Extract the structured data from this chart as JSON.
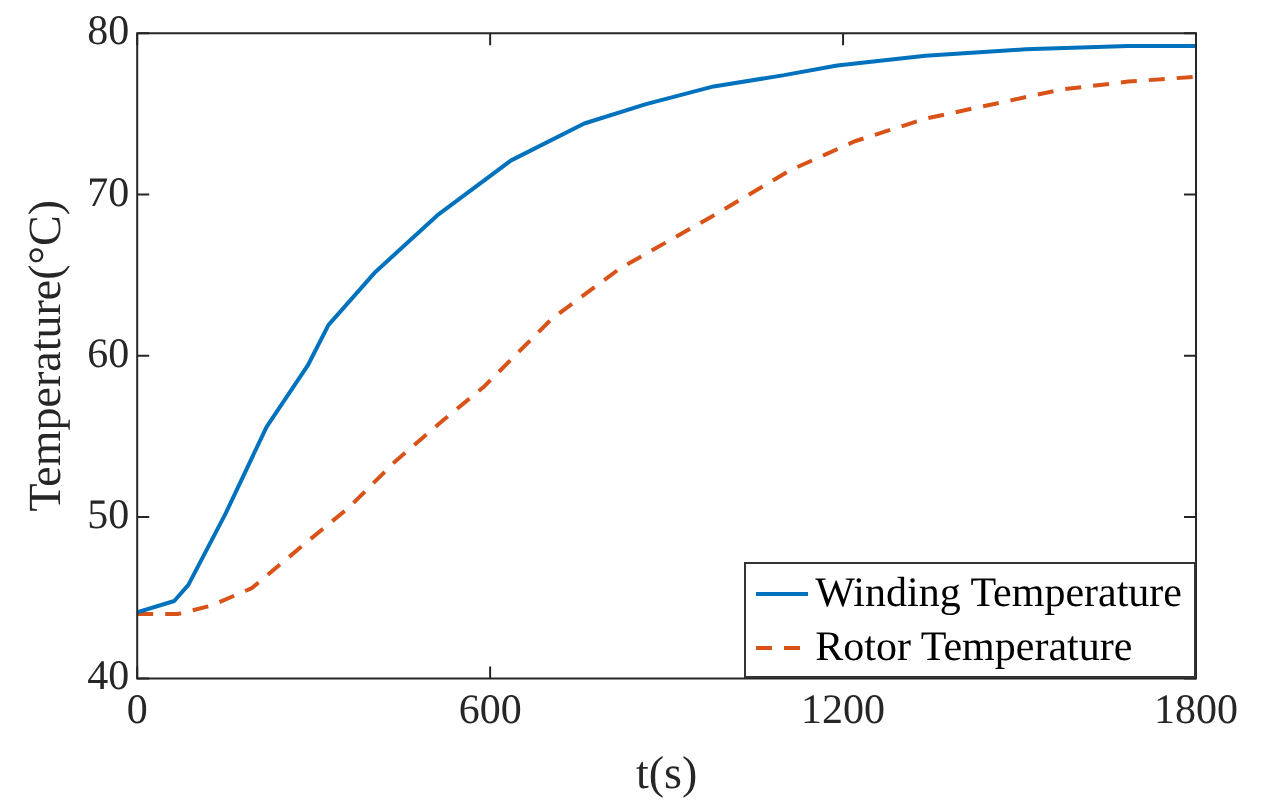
{
  "chart_data": {
    "type": "line",
    "xlabel": "t(s)",
    "ylabel": "Temperature(°C)",
    "xlim": [
      0,
      1800
    ],
    "xticks": [
      0,
      600,
      1200,
      1800
    ],
    "ylim": [
      40,
      80
    ],
    "yticks": [
      40,
      50,
      60,
      70,
      80
    ],
    "legend": "bottom right",
    "grid": false,
    "series": [
      {
        "name": "Winding Temperature",
        "color": "#0072bd",
        "line_style": "solid",
        "x": [
          0,
          63,
          87,
          150,
          220,
          290,
          325,
          405,
          510,
          635,
          760,
          865,
          980,
          1100,
          1190,
          1340,
          1510,
          1685,
          1800
        ],
        "values": [
          44.1,
          44.8,
          45.8,
          50.2,
          55.6,
          59.4,
          61.9,
          65.2,
          68.7,
          72.1,
          74.4,
          75.6,
          76.7,
          77.4,
          78.0,
          78.6,
          79.0,
          79.2,
          79.2
        ]
      },
      {
        "name": "Rotor Temperature",
        "color": "#d95319",
        "line_style": "dashed",
        "x": [
          0,
          70,
          125,
          195,
          290,
          360,
          440,
          520,
          590,
          705,
          820,
          980,
          1110,
          1220,
          1340,
          1455,
          1570,
          1685,
          1800
        ],
        "values": [
          44.0,
          44.0,
          44.5,
          45.6,
          48.5,
          50.6,
          53.5,
          56.0,
          58.1,
          62.3,
          65.4,
          68.7,
          71.5,
          73.3,
          74.7,
          75.6,
          76.5,
          77.0,
          77.3
        ]
      }
    ]
  }
}
